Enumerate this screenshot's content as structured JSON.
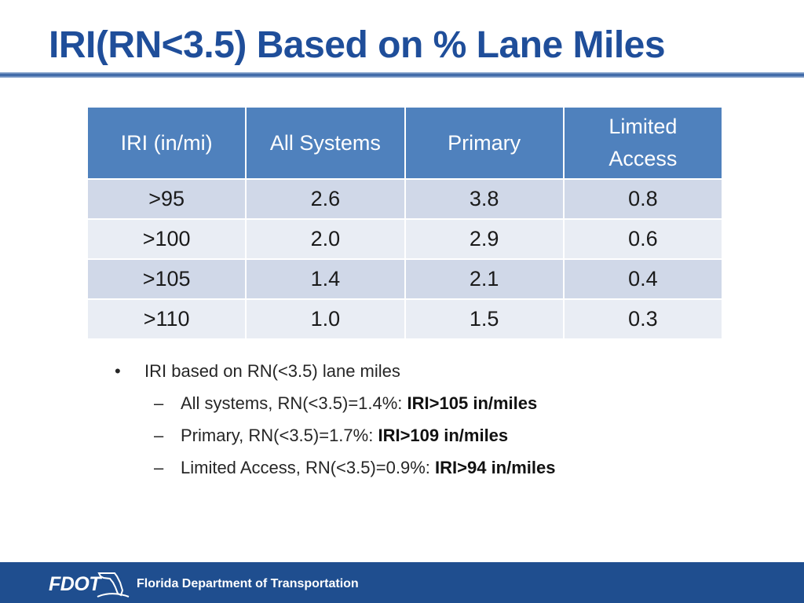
{
  "slide": {
    "title": "IRI(RN<3.5) Based on % Lane Miles"
  },
  "table": {
    "headers": [
      "IRI (in/mi)",
      "All Systems",
      "Primary",
      "Limited\nAccess"
    ],
    "rows": [
      [
        ">95",
        "2.6",
        "3.8",
        "0.8"
      ],
      [
        ">100",
        "2.0",
        "2.9",
        "0.6"
      ],
      [
        ">105",
        "1.4",
        "2.1",
        "0.4"
      ],
      [
        ">110",
        "1.0",
        "1.5",
        "0.3"
      ]
    ]
  },
  "notes": {
    "bullet": "IRI based on RN(<3.5) lane miles",
    "items": [
      {
        "text": "All systems, RN(<3.5)=1.4%: ",
        "bold": "IRI>105 in/miles"
      },
      {
        "text": "Primary, RN(<3.5)=1.7%: ",
        "bold": "IRI>109 in/miles"
      },
      {
        "text": "Limited Access, RN(<3.5)=0.9%: ",
        "bold": "IRI>94 in/miles"
      }
    ]
  },
  "footer": {
    "logo_text": "FDOT",
    "org_name": "Florida Department of Transportation"
  },
  "colors": {
    "title": "#1f4e9a",
    "header_fill": "#4f81bd",
    "row_odd": "#d0d8e8",
    "row_even": "#e9edf4",
    "footer_bar": "#1f4e8f"
  }
}
